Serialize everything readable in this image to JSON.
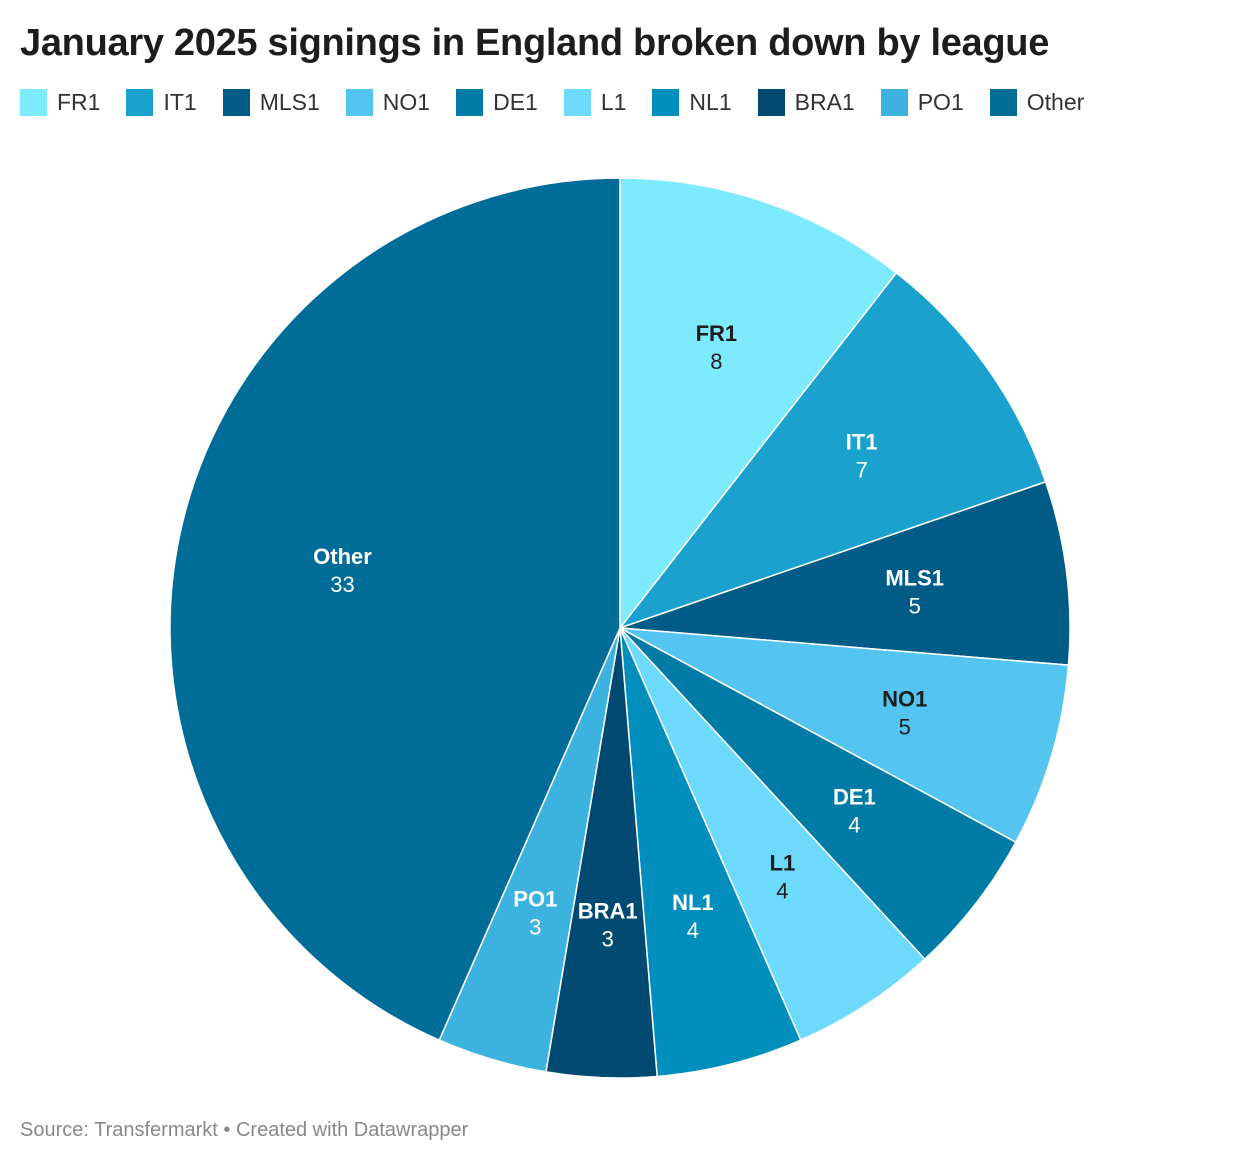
{
  "title": "January 2025 signings in England broken down by league",
  "footer": {
    "source": "Source: Transfermarkt",
    "separator": " • ",
    "credit": "Created with Datawrapper"
  },
  "chart_data": {
    "type": "pie",
    "title": "January 2025 signings in England broken down by league",
    "legend_position": "top",
    "slices": [
      {
        "name": "FR1",
        "value": 8,
        "color": "#7eeafe",
        "label_color": "#1d1d1d"
      },
      {
        "name": "IT1",
        "value": 7,
        "color": "#1aa1ce",
        "label_color": "#ffffff"
      },
      {
        "name": "MLS1",
        "value": 5,
        "color": "#005c87",
        "label_color": "#ffffff"
      },
      {
        "name": "NO1",
        "value": 5,
        "color": "#53c5f0",
        "label_color": "#1d1d1d"
      },
      {
        "name": "DE1",
        "value": 4,
        "color": "#007ba6",
        "label_color": "#ffffff"
      },
      {
        "name": "L1",
        "value": 4,
        "color": "#6dd9fb",
        "label_color": "#1d1d1d"
      },
      {
        "name": "NL1",
        "value": 4,
        "color": "#008ebd",
        "label_color": "#ffffff"
      },
      {
        "name": "BRA1",
        "value": 3,
        "color": "#004a71",
        "label_color": "#ffffff"
      },
      {
        "name": "PO1",
        "value": 3,
        "color": "#3cb3df",
        "label_color": "#ffffff"
      },
      {
        "name": "Other",
        "value": 33,
        "color": "#006c98",
        "label_color": "#ffffff"
      }
    ]
  }
}
